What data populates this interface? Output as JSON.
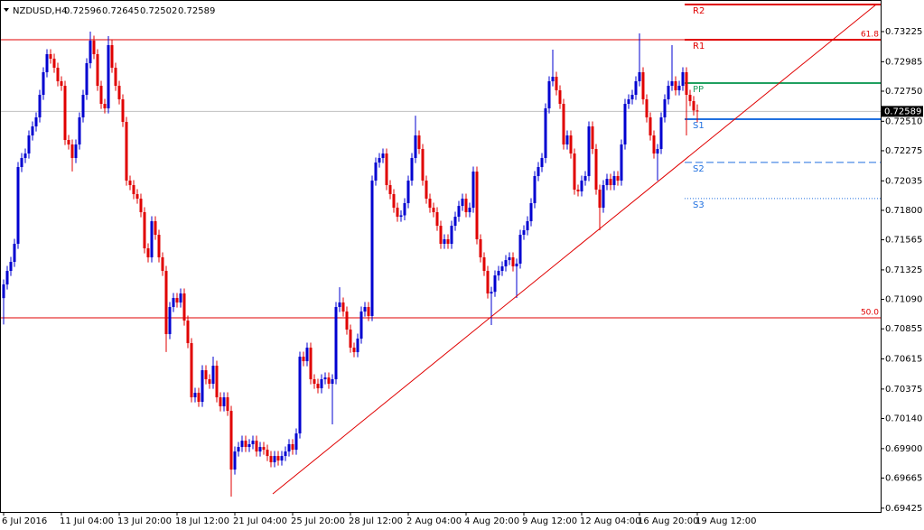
{
  "chart_data": {
    "type": "candlestick",
    "symbol": "NZDUSD,H4",
    "header_ohlc": [
      0.72596,
      0.72645,
      0.72502,
      0.72589
    ],
    "bull_color": "#0000d0",
    "bear_color": "#e00000",
    "categories": [
      "6 Jul 2016",
      null,
      null,
      null,
      null,
      null,
      null,
      null,
      null,
      null,
      null,
      null,
      null,
      null,
      null,
      null,
      "11 Jul 04:00",
      null,
      null,
      null,
      null,
      null,
      null,
      null,
      null,
      null,
      null,
      null,
      null,
      null,
      null,
      null,
      "13 Jul 20:00",
      null,
      null,
      null,
      null,
      null,
      null,
      null,
      null,
      null,
      null,
      null,
      null,
      null,
      null,
      null,
      "18 Jul 12:00",
      null,
      null,
      null,
      null,
      null,
      null,
      null,
      null,
      null,
      null,
      null,
      null,
      null,
      null,
      null,
      "21 Jul 04:00",
      null,
      null,
      null,
      null,
      null,
      null,
      null,
      null,
      null,
      null,
      null,
      null,
      null,
      null,
      null,
      "25 Jul 20:00",
      null,
      null,
      null,
      null,
      null,
      null,
      null,
      null,
      null,
      null,
      null,
      null,
      null,
      null,
      null,
      "28 Jul 12:00",
      null,
      null,
      null,
      null,
      null,
      null,
      null,
      null,
      null,
      null,
      null,
      null,
      null,
      null,
      null,
      "2 Aug 04:00",
      null,
      null,
      null,
      null,
      null,
      null,
      null,
      null,
      null,
      null,
      null,
      null,
      null,
      null,
      null,
      "4 Aug 20:00",
      null,
      null,
      null,
      null,
      null,
      null,
      null,
      null,
      null,
      null,
      null,
      null,
      null,
      null,
      null,
      "9 Aug 12:00",
      null,
      null,
      null,
      null,
      null,
      null,
      null,
      null,
      null,
      null,
      null,
      null,
      null,
      null,
      null,
      "12 Aug 04:00",
      null,
      null,
      null,
      null,
      null,
      null,
      null,
      null,
      null,
      null,
      null,
      null,
      null,
      null,
      null,
      "16 Aug 20:00",
      null,
      null,
      null,
      null,
      null,
      null,
      null,
      null,
      null,
      null,
      null,
      null,
      null,
      null,
      null,
      "19 Aug 12:00"
    ],
    "open": [
      0.711,
      0.71209,
      0.71317,
      0.71389,
      0.71533,
      0.72145,
      0.72217,
      0.72253,
      0.72397,
      0.72469,
      0.72541,
      0.72721,
      0.72901,
      0.73045,
      0.73009,
      0.72937,
      0.72829,
      0.72793,
      0.72361,
      0.72325,
      0.72217,
      0.72325,
      0.72541,
      0.72721,
      0.72973,
      0.73153,
      0.73045,
      0.72793,
      0.72649,
      0.72613,
      0.73117,
      0.72937,
      0.72793,
      0.72685,
      0.72505,
      0.72037,
      0.72001,
      0.71929,
      0.71893,
      0.71785,
      0.71497,
      0.71425,
      0.71713,
      0.71605,
      0.71425,
      0.71317,
      0.70813,
      0.71029,
      0.71101,
      0.71065,
      0.71137,
      0.70921,
      0.70741,
      0.70309,
      0.70345,
      0.70273,
      0.70525,
      0.70453,
      0.70417,
      0.70561,
      0.70309,
      0.70237,
      0.70309,
      0.70201,
      0.69733,
      0.69877,
      0.69913,
      0.69963,
      0.69913,
      0.69935,
      0.69963,
      0.69877,
      0.69913,
      0.69891,
      0.69841,
      0.69791,
      0.69841,
      0.69805,
      0.69841,
      0.69877,
      0.69935,
      0.69891,
      0.70021,
      0.70633,
      0.70597,
      0.70705,
      0.70453,
      0.70417,
      0.70381,
      0.70453,
      0.70467,
      0.70417,
      0.70453,
      0.71029,
      0.71065,
      0.70993,
      0.70849,
      0.70705,
      0.70669,
      0.70777,
      0.70993,
      0.71029,
      0.70957,
      0.72037,
      0.72181,
      0.72217,
      0.72253,
      0.72001,
      0.71929,
      0.71821,
      0.71749,
      0.7176,
      0.71857,
      0.72037,
      0.72217,
      0.72397,
      0.72289,
      0.72037,
      0.71893,
      0.71821,
      0.71785,
      0.71677,
      0.71533,
      0.71569,
      0.71533,
      0.71677,
      0.71749,
      0.71835,
      0.71893,
      0.71785,
      0.71821,
      0.72109,
      0.71569,
      0.71425,
      0.71317,
      0.71137,
      0.7115,
      0.71281,
      0.71317,
      0.71353,
      0.71403,
      0.71425,
      0.71353,
      0.71375,
      0.71605,
      0.71641,
      0.71713,
      0.71857,
      0.72073,
      0.72145,
      0.72217,
      0.72613,
      0.72829,
      0.72865,
      0.72757,
      0.72649,
      0.72325,
      0.72397,
      0.72253,
      0.71965,
      0.71951,
      0.72037,
      0.72073,
      0.72469,
      0.72289,
      0.71965,
      0.71821,
      0.72001,
      0.72051,
      0.72001,
      0.72073,
      0.72037,
      0.72325,
      0.72649,
      0.72685,
      0.72721,
      0.72829,
      0.72901,
      0.72685,
      0.72541,
      0.72397,
      0.72253,
      0.72289,
      0.72541,
      0.72685,
      0.72793,
      0.72829,
      0.72757,
      0.72793,
      0.72901,
      0.72721,
      0.72671,
      0.72596
    ],
    "high": [
      0.71249,
      0.71357,
      0.71429,
      0.71573,
      0.72185,
      0.72257,
      0.72293,
      0.72437,
      0.72509,
      0.72581,
      0.72761,
      0.72941,
      0.73085,
      0.73085,
      0.73049,
      0.72977,
      0.72869,
      0.72833,
      0.72401,
      0.72365,
      0.72365,
      0.72581,
      0.72761,
      0.73013,
      0.73225,
      0.73193,
      0.73085,
      0.72833,
      0.72689,
      0.73189,
      0.73157,
      0.72977,
      0.72833,
      0.72725,
      0.72545,
      0.72077,
      0.72041,
      0.71969,
      0.71933,
      0.71825,
      0.71537,
      0.71753,
      0.71753,
      0.71645,
      0.71465,
      0.71357,
      0.71069,
      0.71141,
      0.71141,
      0.71177,
      0.71177,
      0.70961,
      0.70781,
      0.70385,
      0.70385,
      0.70565,
      0.70565,
      0.70493,
      0.70633,
      0.70601,
      0.70349,
      0.70349,
      0.70349,
      0.70241,
      0.69917,
      0.69953,
      0.70003,
      0.70003,
      0.69975,
      0.70003,
      0.70003,
      0.69953,
      0.69953,
      0.69931,
      0.69881,
      0.69881,
      0.69881,
      0.69881,
      0.69917,
      0.69975,
      0.69975,
      0.70061,
      0.70673,
      0.70673,
      0.70745,
      0.70745,
      0.70493,
      0.70457,
      0.70493,
      0.70507,
      0.70507,
      0.70493,
      0.71069,
      0.71187,
      0.71105,
      0.71033,
      0.70889,
      0.70745,
      0.70817,
      0.71033,
      0.71069,
      0.71069,
      0.72077,
      0.72221,
      0.72257,
      0.72293,
      0.72293,
      0.72041,
      0.71969,
      0.71861,
      0.718,
      0.71897,
      0.72077,
      0.72257,
      0.72555,
      0.72437,
      0.72329,
      0.72077,
      0.71933,
      0.71861,
      0.71825,
      0.71717,
      0.71609,
      0.71609,
      0.71717,
      0.71789,
      0.71875,
      0.71933,
      0.71933,
      0.71861,
      0.72149,
      0.72149,
      0.71609,
      0.71465,
      0.71357,
      0.7119,
      0.71321,
      0.71357,
      0.71393,
      0.71443,
      0.71465,
      0.71465,
      0.71415,
      0.71645,
      0.71681,
      0.71753,
      0.71897,
      0.72113,
      0.72185,
      0.72257,
      0.72653,
      0.72869,
      0.73081,
      0.72905,
      0.72797,
      0.72689,
      0.72437,
      0.72437,
      0.72293,
      0.72005,
      0.72077,
      0.72113,
      0.72509,
      0.72509,
      0.72329,
      0.72005,
      0.72041,
      0.72091,
      0.72091,
      0.72113,
      0.72113,
      0.72365,
      0.72689,
      0.72725,
      0.72761,
      0.72869,
      0.73211,
      0.72941,
      0.72725,
      0.72581,
      0.72437,
      0.72329,
      0.72581,
      0.72725,
      0.72833,
      0.73117,
      0.72869,
      0.72833,
      0.72941,
      0.72941,
      0.72761,
      0.72711,
      0.72645
    ],
    "low": [
      0.7089,
      0.71169,
      0.71277,
      0.71349,
      0.71493,
      0.72105,
      0.72177,
      0.72213,
      0.72357,
      0.72429,
      0.72501,
      0.72681,
      0.72861,
      0.72969,
      0.72897,
      0.72789,
      0.72753,
      0.72321,
      0.72285,
      0.7211,
      0.72177,
      0.72285,
      0.72501,
      0.72681,
      0.72933,
      0.73005,
      0.72753,
      0.72609,
      0.72573,
      0.72573,
      0.72897,
      0.72753,
      0.72645,
      0.72465,
      0.71997,
      0.71961,
      0.71889,
      0.71853,
      0.71745,
      0.71457,
      0.71385,
      0.71385,
      0.71565,
      0.71385,
      0.71277,
      0.7067,
      0.70773,
      0.70989,
      0.71025,
      0.71025,
      0.70881,
      0.70701,
      0.70269,
      0.70269,
      0.70233,
      0.70233,
      0.70413,
      0.70377,
      0.70377,
      0.70269,
      0.70197,
      0.70197,
      0.70161,
      0.69517,
      0.69693,
      0.69837,
      0.69873,
      0.69873,
      0.69873,
      0.69895,
      0.69837,
      0.69837,
      0.69851,
      0.69801,
      0.69751,
      0.69751,
      0.69765,
      0.69765,
      0.69801,
      0.69837,
      0.69851,
      0.69851,
      0.69981,
      0.70557,
      0.70557,
      0.70413,
      0.70377,
      0.70341,
      0.70341,
      0.70413,
      0.70377,
      0.70093,
      0.70413,
      0.70989,
      0.70953,
      0.70809,
      0.70665,
      0.70629,
      0.70629,
      0.70737,
      0.70953,
      0.70917,
      0.70917,
      0.71997,
      0.72141,
      0.72177,
      0.71961,
      0.71889,
      0.71781,
      0.71709,
      0.71709,
      0.7172,
      0.71817,
      0.71997,
      0.72177,
      0.72249,
      0.71997,
      0.71853,
      0.71781,
      0.71745,
      0.71637,
      0.71493,
      0.71493,
      0.71493,
      0.71493,
      0.71637,
      0.71709,
      0.71795,
      0.71745,
      0.71745,
      0.71781,
      0.71529,
      0.71385,
      0.71277,
      0.71097,
      0.70885,
      0.7111,
      0.71241,
      0.71277,
      0.71313,
      0.71363,
      0.71313,
      0.71101,
      0.71335,
      0.71565,
      0.71601,
      0.71673,
      0.71817,
      0.72033,
      0.72105,
      0.72177,
      0.72573,
      0.72789,
      0.72717,
      0.72609,
      0.72285,
      0.72285,
      0.72213,
      0.71925,
      0.71911,
      0.71911,
      0.71997,
      0.72033,
      0.72249,
      0.71925,
      0.71641,
      0.71781,
      0.71961,
      0.71961,
      0.71961,
      0.71997,
      0.71997,
      0.72285,
      0.72609,
      0.72645,
      0.72681,
      0.72789,
      0.72645,
      0.72501,
      0.72357,
      0.72213,
      0.72037,
      0.72249,
      0.72501,
      0.72645,
      0.72753,
      0.72717,
      0.72717,
      0.72753,
      0.72397,
      0.72631,
      0.72556,
      0.72502
    ],
    "close": [
      0.71209,
      0.71317,
      0.71389,
      0.71533,
      0.72145,
      0.72217,
      0.72253,
      0.72397,
      0.72469,
      0.72541,
      0.72721,
      0.72901,
      0.73045,
      0.73009,
      0.72937,
      0.72829,
      0.72793,
      0.72361,
      0.72325,
      0.72217,
      0.72325,
      0.72541,
      0.72721,
      0.72973,
      0.73153,
      0.73045,
      0.72793,
      0.72649,
      0.72613,
      0.73117,
      0.72937,
      0.72793,
      0.72685,
      0.72505,
      0.72037,
      0.72001,
      0.71929,
      0.71893,
      0.71785,
      0.71497,
      0.71425,
      0.71713,
      0.71605,
      0.71425,
      0.71317,
      0.70813,
      0.71029,
      0.71101,
      0.71065,
      0.71137,
      0.70921,
      0.70741,
      0.70309,
      0.70345,
      0.70273,
      0.70525,
      0.70453,
      0.70417,
      0.70561,
      0.70309,
      0.70237,
      0.70309,
      0.70201,
      0.69733,
      0.69877,
      0.69913,
      0.69963,
      0.69913,
      0.69935,
      0.69963,
      0.69877,
      0.69913,
      0.69891,
      0.69841,
      0.69791,
      0.69841,
      0.69805,
      0.69841,
      0.69877,
      0.69935,
      0.69891,
      0.70021,
      0.70633,
      0.70597,
      0.70705,
      0.70453,
      0.70417,
      0.70381,
      0.70453,
      0.70467,
      0.70417,
      0.70453,
      0.71029,
      0.71065,
      0.70993,
      0.70849,
      0.70705,
      0.70669,
      0.70777,
      0.70993,
      0.71029,
      0.70957,
      0.72037,
      0.72181,
      0.72217,
      0.72253,
      0.72001,
      0.71929,
      0.71821,
      0.71749,
      0.7176,
      0.71857,
      0.72037,
      0.72217,
      0.72397,
      0.72289,
      0.72037,
      0.71893,
      0.71821,
      0.71785,
      0.71677,
      0.71533,
      0.71569,
      0.71533,
      0.71677,
      0.71749,
      0.71835,
      0.71893,
      0.71785,
      0.71821,
      0.72109,
      0.71569,
      0.71425,
      0.71317,
      0.71137,
      0.7115,
      0.71281,
      0.71317,
      0.71353,
      0.71403,
      0.71425,
      0.71353,
      0.71375,
      0.71605,
      0.71641,
      0.71713,
      0.71857,
      0.72073,
      0.72145,
      0.72217,
      0.72613,
      0.72829,
      0.72865,
      0.72757,
      0.72649,
      0.72325,
      0.72397,
      0.72253,
      0.71965,
      0.71951,
      0.72037,
      0.72073,
      0.72469,
      0.72289,
      0.71965,
      0.71821,
      0.72001,
      0.72051,
      0.72001,
      0.72073,
      0.72037,
      0.72325,
      0.72649,
      0.72685,
      0.72721,
      0.72829,
      0.72901,
      0.72685,
      0.72541,
      0.72397,
      0.72253,
      0.72289,
      0.72541,
      0.72685,
      0.72793,
      0.72829,
      0.72757,
      0.72793,
      0.72901,
      0.72721,
      0.72671,
      0.72596,
      0.72589
    ],
    "xlim": [
      -1,
      242.75
    ],
    "ylim": [
      0.69395,
      0.73477
    ],
    "yticks": [
      0.73225,
      0.72985,
      {
        "value": 0.7275,
        "label": "0.72750"
      },
      {
        "value": 0.7251,
        "label": "0.72510"
      },
      0.72275,
      0.72035,
      {
        "value": 0.718,
        "label": "0.71800"
      },
      0.71565,
      0.71325,
      {
        "value": 0.7109,
        "label": "0.71090"
      },
      0.70855,
      0.70615,
      0.70375,
      {
        "value": 0.7014,
        "label": "0.70140"
      },
      {
        "value": 0.699,
        "label": "0.69900"
      },
      0.69665,
      0.69425
    ],
    "current_price_color": "#c0c0c0",
    "fib_levels": [
      {
        "label": "61.8",
        "price": 0.7316,
        "color": "#e00000"
      },
      {
        "label": "50.0",
        "price": 0.70943,
        "color": "#e00000"
      }
    ],
    "pivots": [
      {
        "label": "R2",
        "price": 0.73441,
        "color": "#e00000",
        "style": "solid"
      },
      {
        "label": "R1",
        "price": 0.7316,
        "color": "#e00000",
        "style": "solid"
      },
      {
        "label": "PP",
        "price": 0.72815,
        "color": "#20a060",
        "style": "solid"
      },
      {
        "label": "S1",
        "price": 0.72527,
        "color": "#2070e0",
        "style": "solid"
      },
      {
        "label": "S2",
        "price": 0.72182,
        "color": "#2070e0",
        "style": "dashed"
      },
      {
        "label": "S3",
        "price": 0.71894,
        "color": "#2070e0",
        "style": "dotted"
      }
    ],
    "trendline": {
      "x": [
        74.5,
        241.5
      ],
      "values": [
        0.69539,
        0.73441
      ],
      "color": "#e00000"
    }
  }
}
